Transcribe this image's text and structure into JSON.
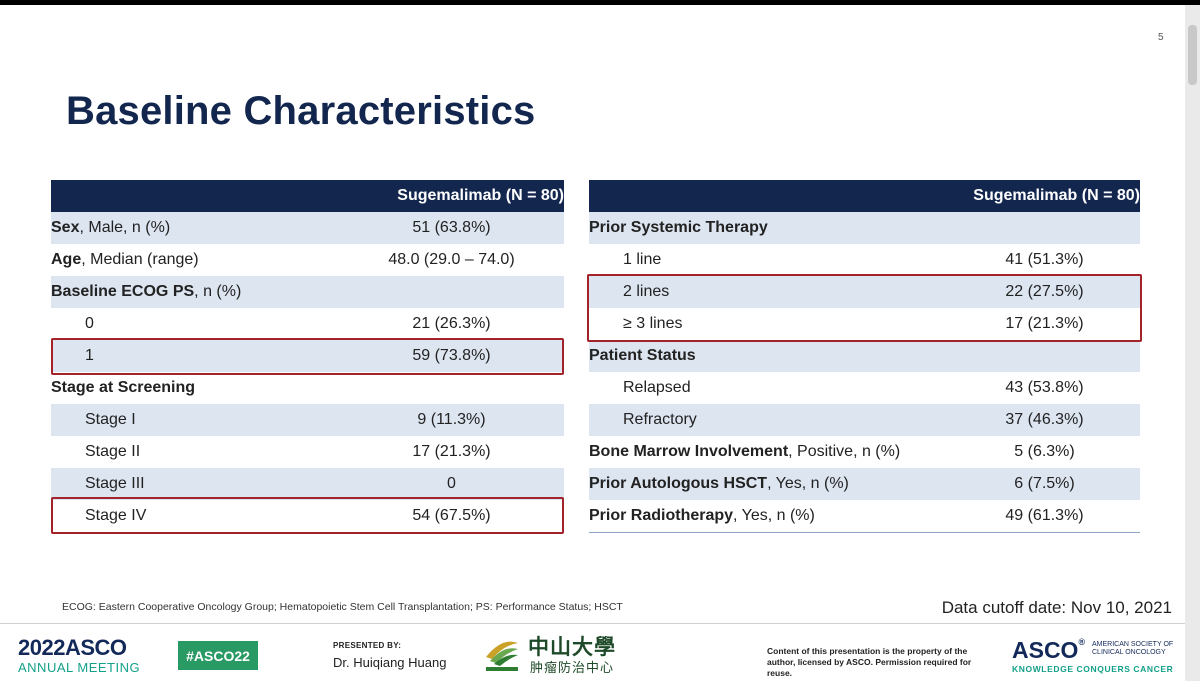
{
  "slide": {
    "page_number": "5",
    "title": "Baseline Characteristics"
  },
  "left_table": {
    "header": "Sugemalimab (N = 80)",
    "rows": [
      {
        "bold": "Sex",
        "rest": ", Male, n (%)",
        "value": "51 (63.8%)"
      },
      {
        "bold": "Age",
        "rest": ", Median (range)",
        "value": "48.0 (29.0 – 74.0)"
      },
      {
        "bold": "Baseline ECOG PS",
        "rest": ", n (%)",
        "value": ""
      },
      {
        "bold": "",
        "rest": "0",
        "value": "21 (26.3%)"
      },
      {
        "bold": "",
        "rest": "1",
        "value": "59 (73.8%)"
      },
      {
        "bold": "Stage at Screening",
        "rest": "",
        "value": ""
      },
      {
        "bold": "",
        "rest": "Stage I",
        "value": "9 (11.3%)"
      },
      {
        "bold": "",
        "rest": "Stage II",
        "value": "17 (21.3%)"
      },
      {
        "bold": "",
        "rest": "Stage III",
        "value": "0"
      },
      {
        "bold": "",
        "rest": "Stage IV",
        "value": "54 (67.5%)"
      }
    ]
  },
  "right_table": {
    "header": "Sugemalimab (N = 80)",
    "rows": [
      {
        "bold": "Prior Systemic Therapy",
        "rest": "",
        "value": ""
      },
      {
        "bold": "",
        "rest": "1 line",
        "value": "41 (51.3%)"
      },
      {
        "bold": "",
        "rest": "2 lines",
        "value": "22 (27.5%)"
      },
      {
        "bold": "",
        "rest": "≥ 3 lines",
        "value": "17 (21.3%)"
      },
      {
        "bold": "Patient Status",
        "rest": "",
        "value": ""
      },
      {
        "bold": "",
        "rest": "Relapsed",
        "value": "43 (53.8%)"
      },
      {
        "bold": "",
        "rest": "Refractory",
        "value": "37 (46.3%)"
      },
      {
        "bold": "Bone Marrow Involvement",
        "rest": ", Positive, n (%)",
        "value": "5 (6.3%)"
      },
      {
        "bold": "Prior Autologous HSCT",
        "rest": ", Yes, n (%)",
        "value": "6 (7.5%)"
      },
      {
        "bold": "Prior Radiotherapy",
        "rest": ", Yes, n (%)",
        "value": "49 (61.3%)"
      }
    ]
  },
  "footnote": "ECOG: Eastern Cooperative Oncology Group; Hematopoietic Stem Cell Transplantation; PS: Performance Status; HSCT",
  "data_cutoff": "Data cutoff date: Nov 10, 2021",
  "footer": {
    "meeting_year": "2022",
    "meeting_org": "ASCO",
    "meeting_name": "ANNUAL MEETING",
    "hashtag": "#ASCO22",
    "presented_by_label": "PRESENTED BY:",
    "presenter": "Dr. Huiqiang Huang",
    "university_cn": "中山大學",
    "cancer_center_cn": "肿瘤防治中心",
    "copyright": "Content of this presentation is the property of the author, licensed by ASCO. Permission required for reuse.",
    "asco_logo": "ASCO",
    "asco_society": "AMERICAN SOCIETY OF CLINICAL ONCOLOGY",
    "asco_tagline": "KNOWLEDGE CONQUERS CANCER"
  },
  "colors": {
    "header_navy": "#12264e",
    "stripe": "#dde5f1",
    "highlight_red": "#a3232b",
    "asco_teal": "#13a089"
  }
}
